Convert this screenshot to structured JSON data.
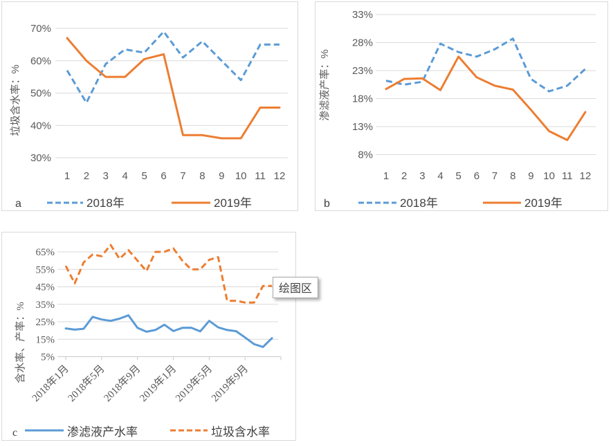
{
  "colors": {
    "blue": "#5B9BD5",
    "orange": "#ED7D31",
    "grid": "#D9D9D9",
    "axis": "#C9C9C9",
    "text": "#595959",
    "legend_text": "#404040",
    "box_border": "#D9D9D9"
  },
  "tooltip": {
    "text": "绘图区"
  },
  "chart_data": [
    {
      "id": "a",
      "type": "line",
      "corner_label": "a",
      "ylabel": "垃圾含水率：%",
      "ylim": [
        30,
        70
      ],
      "ytick_step": 10,
      "ytick_suffix": "%",
      "grid": true,
      "legend_position": "bottom",
      "categories": [
        "1",
        "2",
        "3",
        "4",
        "5",
        "6",
        "7",
        "8",
        "9",
        "10",
        "11",
        "12"
      ],
      "series": [
        {
          "name": "2018年",
          "color": "blue",
          "dash": true,
          "values": [
            57,
            47,
            59,
            63.5,
            62.5,
            69,
            61,
            66,
            60,
            54,
            65,
            65
          ]
        },
        {
          "name": "2019年",
          "color": "orange",
          "dash": false,
          "values": [
            67,
            60,
            55,
            55,
            60.5,
            62,
            37,
            37,
            36,
            36,
            45.5,
            45.5
          ]
        }
      ]
    },
    {
      "id": "b",
      "type": "line",
      "corner_label": "b",
      "ylabel": "渗滤液产率：%",
      "ylim": [
        8,
        33
      ],
      "ytick_step": 5,
      "ytick_suffix": "%",
      "grid": true,
      "legend_position": "bottom",
      "categories": [
        "1",
        "2",
        "3",
        "4",
        "5",
        "6",
        "7",
        "8",
        "9",
        "10",
        "11",
        "12"
      ],
      "series": [
        {
          "name": "2018年",
          "color": "blue",
          "dash": true,
          "values": [
            21.2,
            20.5,
            21,
            27.8,
            26.3,
            25.5,
            26.8,
            28.7,
            21.5,
            19.3,
            20.3,
            23.3
          ]
        },
        {
          "name": "2019年",
          "color": "orange",
          "dash": false,
          "values": [
            19.7,
            21.5,
            21.6,
            19.5,
            25.5,
            21.8,
            20.3,
            19.6,
            16,
            12.2,
            10.6,
            15.6
          ]
        }
      ]
    },
    {
      "id": "c",
      "type": "line",
      "corner_label": "c",
      "ylabel": "含水率、产率：%",
      "ylim": [
        5,
        65
      ],
      "ytick_step": 10,
      "ytick_suffix": "%",
      "grid": true,
      "legend_position": "bottom",
      "xtick_labels": [
        "2018年1月",
        "2018年5月",
        "2018年9月",
        "2019年1月",
        "2019年5月",
        "2019年9月"
      ],
      "xtick_every": 4,
      "n_points": 24,
      "series": [
        {
          "name": "渗滤液产水率",
          "color": "blue",
          "dash": false,
          "values": [
            21.2,
            20.5,
            21,
            27.8,
            26.3,
            25.5,
            26.8,
            28.7,
            21.5,
            19.3,
            20.3,
            23.3,
            19.7,
            21.5,
            21.6,
            19.5,
            25.5,
            21.8,
            20.3,
            19.6,
            16,
            12.2,
            10.6,
            15.6
          ]
        },
        {
          "name": "垃圾含水率",
          "color": "orange",
          "dash": true,
          "values": [
            57,
            47,
            59,
            63.5,
            62.5,
            69,
            61,
            66,
            60,
            54,
            65,
            65,
            67,
            60,
            55,
            55,
            60.5,
            62,
            37,
            37,
            36,
            36,
            45.5,
            45.5
          ]
        }
      ]
    }
  ]
}
